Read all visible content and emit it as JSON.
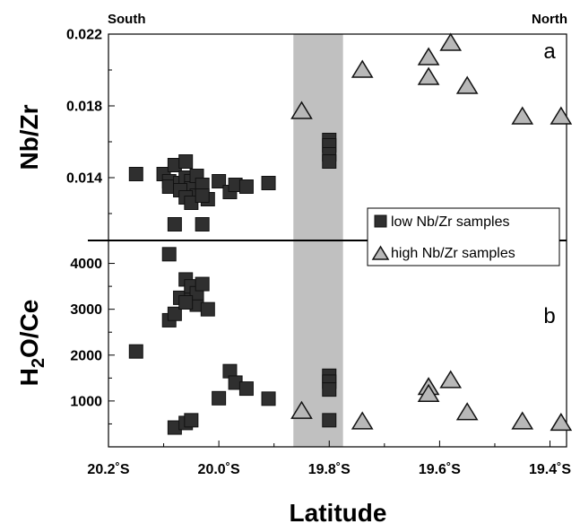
{
  "chart_data": {
    "type": "scatter",
    "corner_labels": {
      "left": "South",
      "right": "North"
    },
    "xlabel": "Latitude",
    "x_reversed": true,
    "xlim": [
      20.2,
      19.37
    ],
    "xticks": [
      {
        "v": 20.2,
        "label": "20.2˚S"
      },
      {
        "v": 20.0,
        "label": "20.0˚S"
      },
      {
        "v": 19.8,
        "label": "19.8˚S"
      },
      {
        "v": 19.6,
        "label": "19.6˚S"
      },
      {
        "v": 19.4,
        "label": "19.4˚S"
      }
    ],
    "shaded_band": {
      "from": 19.865,
      "to": 19.775,
      "color": "#c0c0c0"
    },
    "legend": {
      "placement": "lower-right of panel a",
      "items": [
        {
          "label": "low Nb/Zr samples",
          "marker": "square"
        },
        {
          "label": "high Nb/Zr samples",
          "marker": "triangle"
        }
      ]
    },
    "colors": {
      "low": "#2f2f2f",
      "high": "#b8b8b8"
    },
    "panels": [
      {
        "id": "a",
        "label": "a",
        "ylabel": "Nb/Zr",
        "ylim": [
          0.0105,
          0.022
        ],
        "yticks": [
          {
            "v": 0.014,
            "label": "0.014"
          },
          {
            "v": 0.018,
            "label": "0.018"
          },
          {
            "v": 0.022,
            "label": "0.022"
          }
        ],
        "series": [
          {
            "name": "low Nb/Zr samples",
            "marker": "square",
            "points": [
              [
                20.15,
                0.0142
              ],
              [
                20.1,
                0.0142
              ],
              [
                20.09,
                0.0138
              ],
              [
                20.09,
                0.0135
              ],
              [
                20.08,
                0.0147
              ],
              [
                20.07,
                0.0137
              ],
              [
                20.06,
                0.0149
              ],
              [
                20.06,
                0.014
              ],
              [
                20.05,
                0.0138
              ],
              [
                20.05,
                0.0134
              ],
              [
                20.04,
                0.0141
              ],
              [
                20.04,
                0.013
              ],
              [
                20.03,
                0.0136
              ],
              [
                20.02,
                0.0128
              ],
              [
                20.07,
                0.0133
              ],
              [
                20.06,
                0.0129
              ],
              [
                20.05,
                0.0126
              ],
              [
                20.03,
                0.013
              ],
              [
                20.0,
                0.0138
              ],
              [
                19.98,
                0.0132
              ],
              [
                19.97,
                0.0136
              ],
              [
                19.95,
                0.0135
              ],
              [
                19.91,
                0.0137
              ],
              [
                20.08,
                0.0114
              ],
              [
                20.03,
                0.0114
              ],
              [
                19.8,
                0.0161
              ],
              [
                19.8,
                0.0158
              ],
              [
                19.8,
                0.0153
              ],
              [
                19.8,
                0.0149
              ]
            ]
          },
          {
            "name": "high Nb/Zr samples",
            "marker": "triangle",
            "points": [
              [
                19.85,
                0.0177
              ],
              [
                19.74,
                0.02
              ],
              [
                19.62,
                0.0207
              ],
              [
                19.62,
                0.0196
              ],
              [
                19.58,
                0.0215
              ],
              [
                19.55,
                0.0191
              ],
              [
                19.45,
                0.0174
              ],
              [
                19.38,
                0.0174
              ]
            ]
          }
        ]
      },
      {
        "id": "b",
        "label": "b",
        "ylabel_main": "H",
        "ylabel_sub": "2",
        "ylabel_rest": "O/Ce",
        "ylim": [
          0,
          4500
        ],
        "yticks": [
          {
            "v": 1000,
            "label": "1000"
          },
          {
            "v": 2000,
            "label": "2000"
          },
          {
            "v": 3000,
            "label": "3000"
          },
          {
            "v": 4000,
            "label": "4000"
          }
        ],
        "series": [
          {
            "name": "low Nb/Zr samples",
            "marker": "square",
            "points": [
              [
                20.15,
                2080
              ],
              [
                20.09,
                4200
              ],
              [
                20.09,
                2760
              ],
              [
                20.08,
                2900
              ],
              [
                20.07,
                3250
              ],
              [
                20.06,
                3650
              ],
              [
                20.05,
                3400
              ],
              [
                20.05,
                3500
              ],
              [
                20.04,
                3100
              ],
              [
                20.04,
                3350
              ],
              [
                20.03,
                3550
              ],
              [
                20.02,
                3000
              ],
              [
                20.06,
                3150
              ],
              [
                20.08,
                420
              ],
              [
                20.06,
                520
              ],
              [
                20.05,
                580
              ],
              [
                20.0,
                1060
              ],
              [
                19.98,
                1650
              ],
              [
                19.97,
                1400
              ],
              [
                19.95,
                1270
              ],
              [
                19.91,
                1050
              ],
              [
                19.8,
                1550
              ],
              [
                19.8,
                1420
              ],
              [
                19.8,
                1250
              ],
              [
                19.8,
                580
              ]
            ]
          },
          {
            "name": "high Nb/Zr samples",
            "marker": "triangle",
            "points": [
              [
                19.85,
                780
              ],
              [
                19.74,
                550
              ],
              [
                19.62,
                1300
              ],
              [
                19.62,
                1150
              ],
              [
                19.58,
                1450
              ],
              [
                19.55,
                750
              ],
              [
                19.45,
                550
              ],
              [
                19.38,
                520
              ]
            ]
          }
        ]
      }
    ]
  }
}
